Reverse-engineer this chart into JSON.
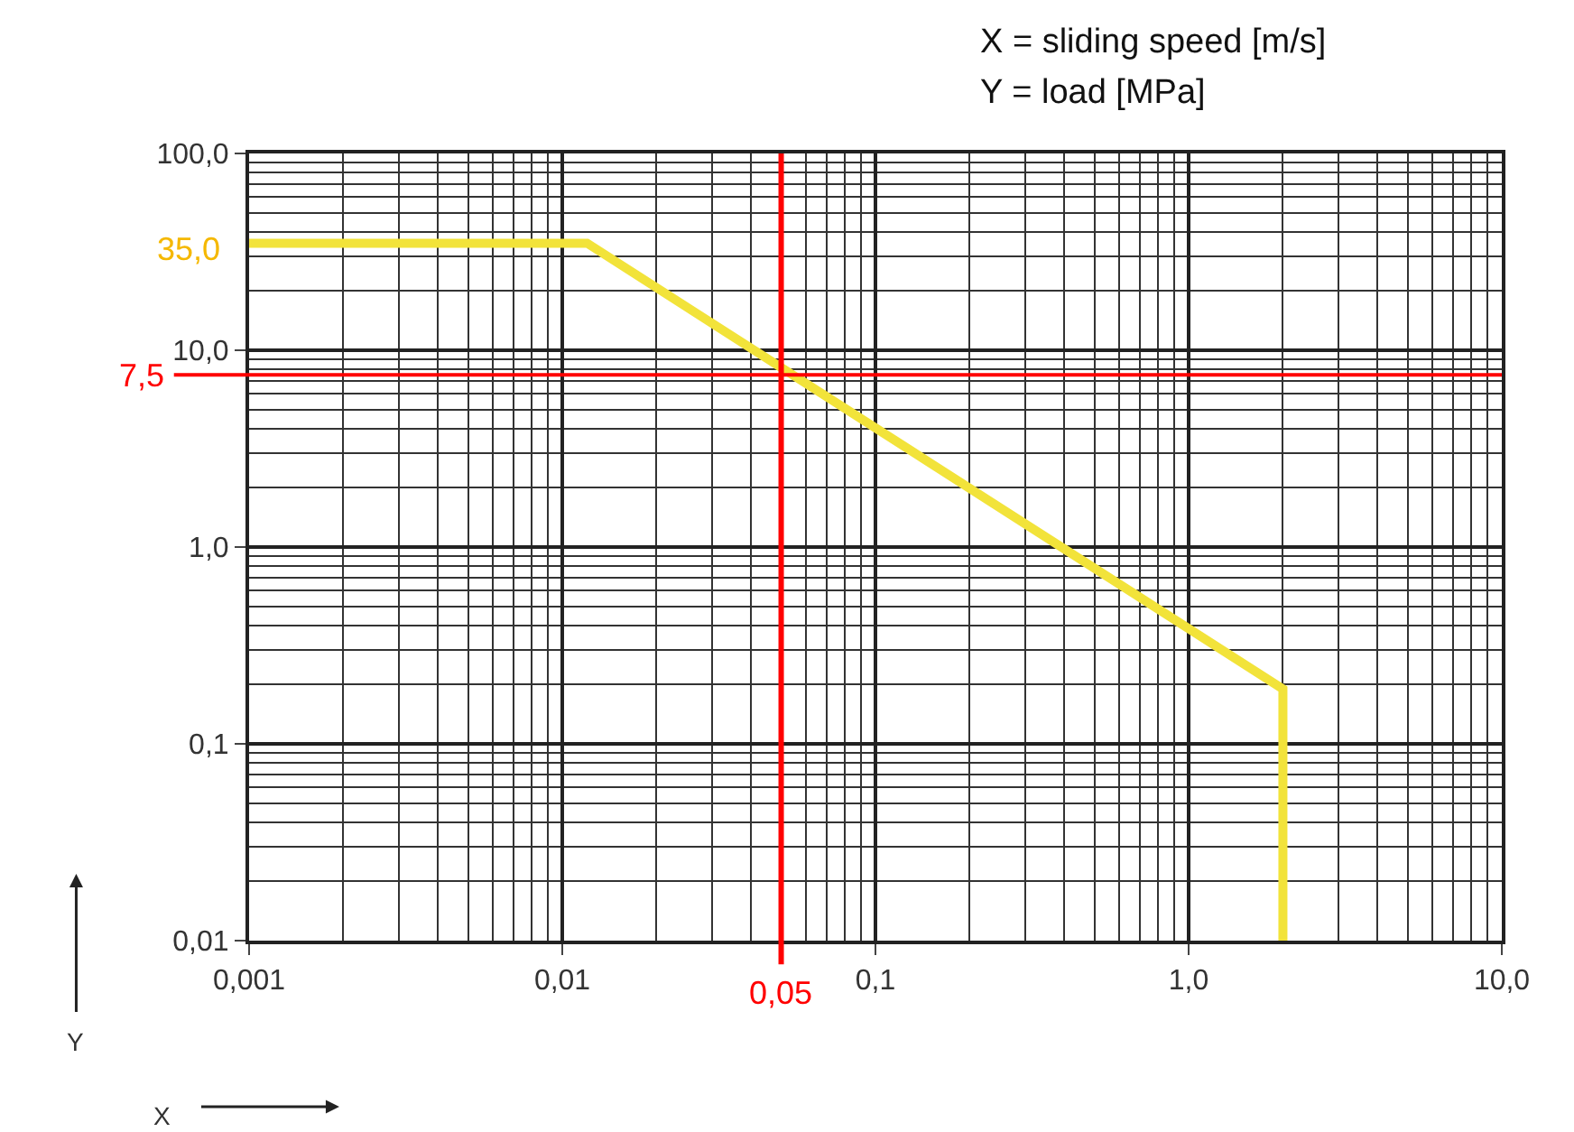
{
  "chart_data": {
    "type": "line",
    "annotations": [
      "X = sliding speed [m/s]",
      "Y = load [MPa]",
      "35,0",
      "Y",
      "X"
    ],
    "x": [
      0.001,
      0.012,
      2,
      2
    ],
    "series": [
      {
        "color": "#f2e33a",
        "values": [
          35,
          35,
          0.19,
          0.01
        ]
      }
    ],
    "xlim": [
      0.001,
      10
    ],
    "ylim": [
      0.01,
      100
    ],
    "xticks": [
      {
        "value": 0.001,
        "label": "0,001"
      },
      {
        "value": 0.01,
        "label": "0,01"
      },
      {
        "value": 0.1,
        "label": "0,1"
      },
      {
        "value": 1,
        "label": "1,0"
      },
      {
        "value": 10,
        "label": "10,0"
      }
    ],
    "yticks": [
      {
        "value": 0.01,
        "label": "0,01"
      },
      {
        "value": 0.1,
        "label": "0,1"
      },
      {
        "value": 1,
        "label": "1,0"
      },
      {
        "value": 10,
        "label": "10,0"
      },
      {
        "value": 100,
        "label": "100,0"
      }
    ],
    "log": "xy",
    "grid": true,
    "marker": "none",
    "line_style": "solid",
    "ref_lines": [
      {
        "axis": "y",
        "value": 7.5,
        "label": "7,5",
        "color": "#ff0000"
      },
      {
        "axis": "x",
        "value": 0.05,
        "label": "0,05",
        "color": "#ff0000"
      }
    ]
  }
}
